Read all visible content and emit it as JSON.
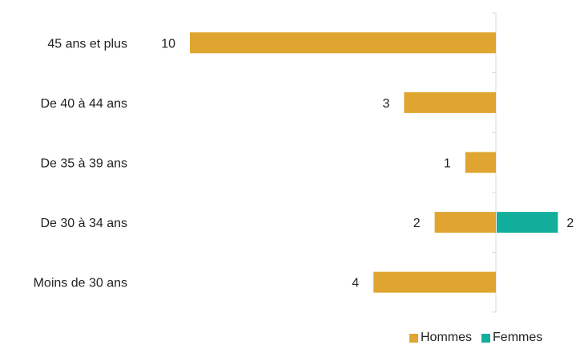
{
  "chart_data": {
    "type": "bar",
    "orientation": "horizontal",
    "layout": "diverging",
    "categories": [
      "45 ans et plus",
      "De 40 à 44 ans",
      "De 35 à 39 ans",
      "De 30 à 34 ans",
      "Moins de 30 ans"
    ],
    "series": [
      {
        "name": "Hommes",
        "direction": "left",
        "color": "#E0A530",
        "values": [
          10,
          3,
          1,
          2,
          4
        ]
      },
      {
        "name": "Femmes",
        "direction": "right",
        "color": "#12AE9C",
        "values": [
          null,
          null,
          null,
          2,
          null
        ]
      }
    ],
    "data_labels": true,
    "legend_position": "bottom-right",
    "grid": false
  }
}
